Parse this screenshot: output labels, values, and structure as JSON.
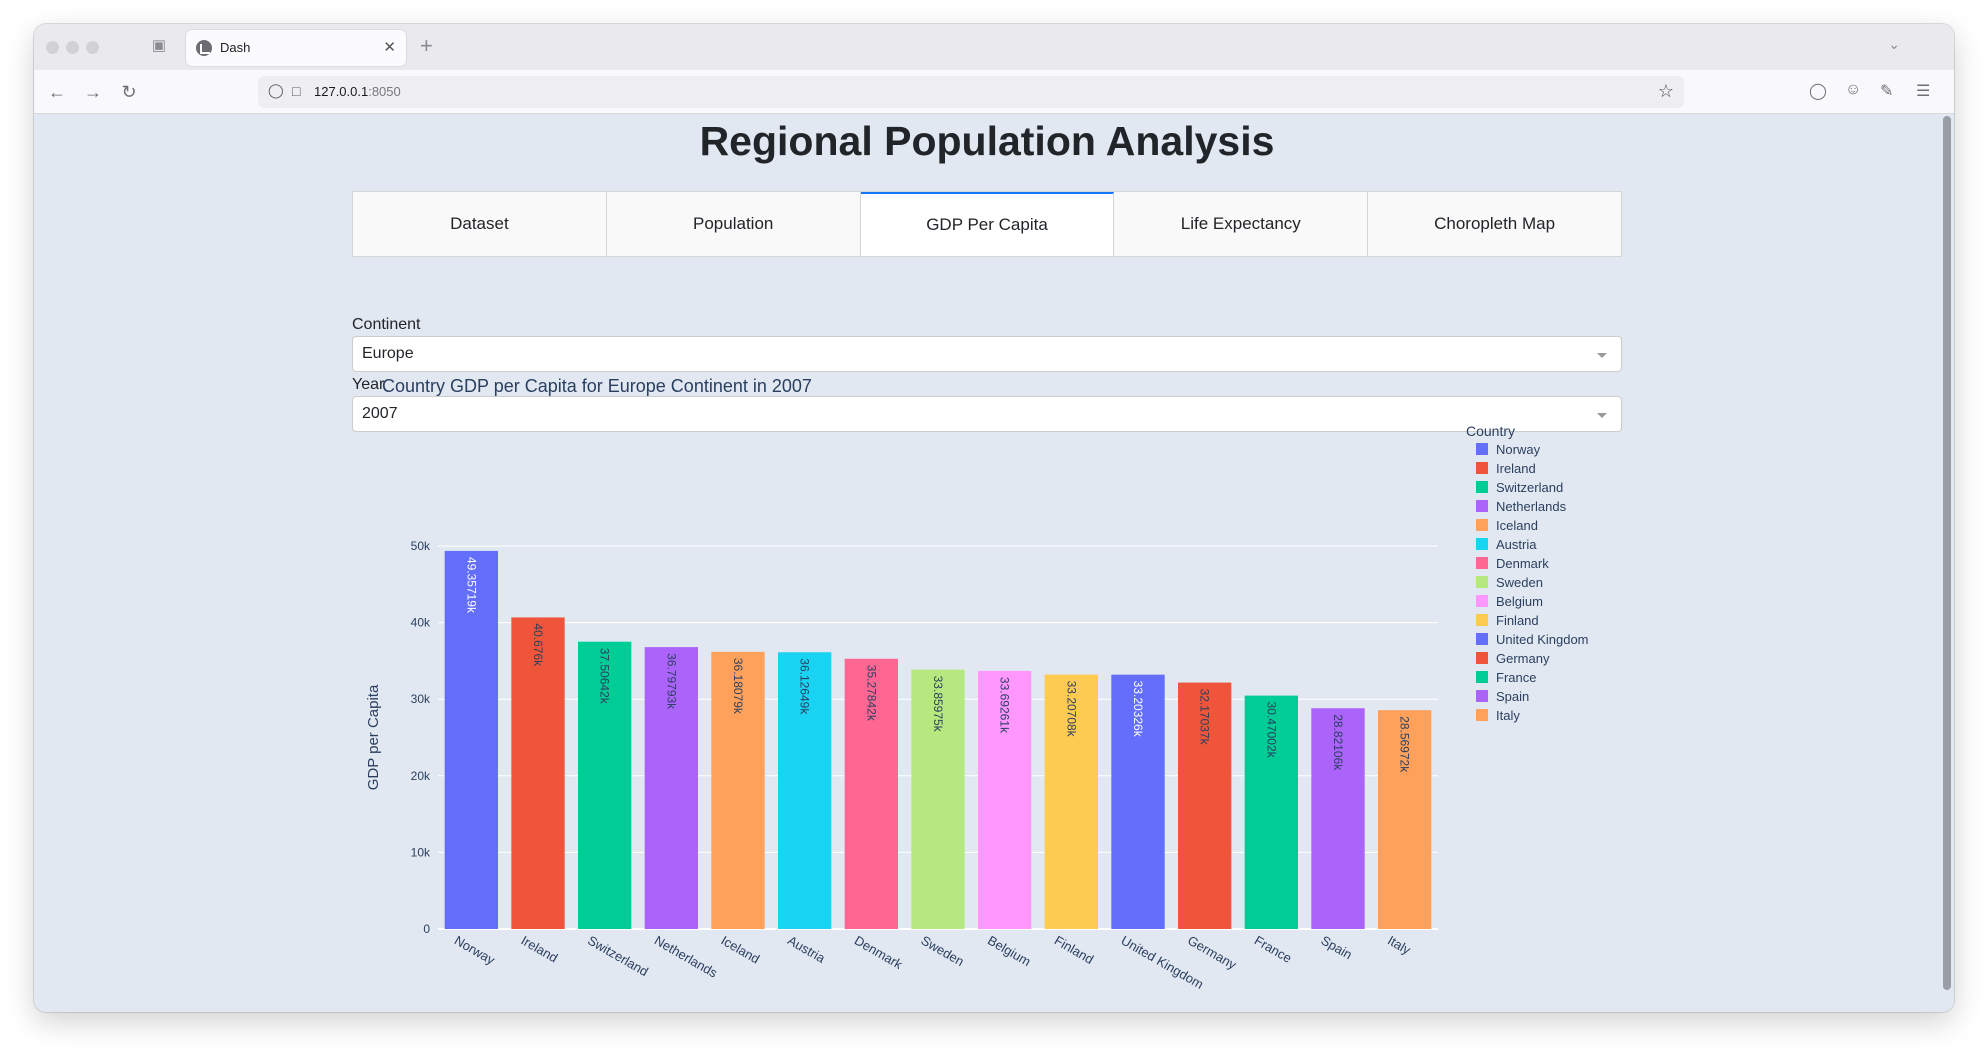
{
  "browser": {
    "tab_title": "Dash",
    "url_host": "127.0.0.1",
    "url_port": ":8050"
  },
  "page": {
    "title": "Regional Population Analysis"
  },
  "tabs": [
    {
      "label": "Dataset",
      "active": false
    },
    {
      "label": "Population",
      "active": false
    },
    {
      "label": "GDP Per Capita",
      "active": true
    },
    {
      "label": "Life Expectancy",
      "active": false
    },
    {
      "label": "Choropleth Map",
      "active": false
    }
  ],
  "filters": {
    "continent_label": "Continent",
    "continent_value": "Europe",
    "year_label": "Year",
    "year_value": "2007"
  },
  "chart_data": {
    "type": "bar",
    "title": "Country GDP per Capita for Europe Continent in 2007",
    "xlabel": "",
    "ylabel": "GDP per Capita",
    "ylim": [
      0,
      50000
    ],
    "yticks": [
      {
        "value": 0,
        "label": "0"
      },
      {
        "value": 10000,
        "label": "10k"
      },
      {
        "value": 20000,
        "label": "20k"
      },
      {
        "value": 30000,
        "label": "30k"
      },
      {
        "value": 40000,
        "label": "40k"
      },
      {
        "value": 50000,
        "label": "50k"
      }
    ],
    "grid": true,
    "legend_title": "Country",
    "legend_position": "right",
    "categories": [
      "Norway",
      "Ireland",
      "Switzerland",
      "Netherlands",
      "Iceland",
      "Austria",
      "Denmark",
      "Sweden",
      "Belgium",
      "Finland",
      "United Kingdom",
      "Germany",
      "France",
      "Spain",
      "Italy"
    ],
    "values": [
      49357.19,
      40676,
      37506.42,
      36797.93,
      36180.79,
      36126.49,
      35278.42,
      33859.75,
      33692.61,
      33207.08,
      33203.26,
      32170.37,
      30470.02,
      28821.06,
      28569.72
    ],
    "value_labels": [
      "49.35719k",
      "40.676k",
      "37.50642k",
      "36.79793k",
      "36.18079k",
      "36.12649k",
      "35.27842k",
      "33.85975k",
      "33.69261k",
      "33.20708k",
      "33.20326k",
      "32.17037k",
      "30.47002k",
      "28.82106k",
      "28.56972k"
    ],
    "colors": [
      "#636efa",
      "#ef553b",
      "#00cc96",
      "#ab63fa",
      "#ffa15a",
      "#19d3f3",
      "#ff6692",
      "#b6e880",
      "#ff97ff",
      "#fecb52",
      "#636efa",
      "#ef553b",
      "#00cc96",
      "#ab63fa",
      "#ffa15a"
    ],
    "label_colors": [
      "#ffffff",
      "#2a3f5f",
      "#2a3f5f",
      "#2a3f5f",
      "#2a3f5f",
      "#2a3f5f",
      "#2a3f5f",
      "#2a3f5f",
      "#2a3f5f",
      "#2a3f5f",
      "#ffffff",
      "#2a3f5f",
      "#2a3f5f",
      "#2a3f5f",
      "#2a3f5f"
    ]
  }
}
